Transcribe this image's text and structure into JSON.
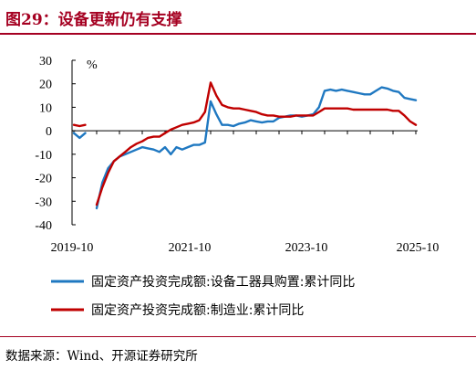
{
  "header": {
    "title": "图29：设备更新仍有支撑"
  },
  "footer": {
    "source": "数据来源：Wind、开源证券研究所"
  },
  "colors": {
    "title": "#a50021",
    "series_1": "#1f78c1",
    "series_2": "#c00000",
    "axis": "#000000"
  },
  "chart_data": {
    "type": "line",
    "unit_label": "%",
    "ylim": [
      -40,
      30
    ],
    "y_ticks": [
      30,
      20,
      10,
      0,
      -10,
      -20,
      -30,
      -40
    ],
    "x_ticks": [
      "2019-10",
      "2021-10",
      "2023-10",
      "2025-10"
    ],
    "grid": false,
    "legend_position": "bottom",
    "series": [
      {
        "name": "固定资产投资完成额:设备工器具购置:累计同比",
        "values": [
          -1,
          -3,
          -1,
          null,
          -33,
          -22,
          -16,
          -13,
          -11,
          -10,
          -9,
          -8,
          -7,
          -7.5,
          -8,
          -9,
          -7,
          -10,
          -7,
          -8,
          -7,
          -6,
          -6,
          -5,
          12.5,
          7,
          2.5,
          2.5,
          2,
          3,
          3.5,
          4.5,
          4,
          3.5,
          4,
          4,
          5.5,
          6,
          6.5,
          6.5,
          6,
          6.5,
          7,
          10,
          17,
          17.5,
          17,
          17.5,
          17,
          16.5,
          16,
          15.5,
          15.5,
          17,
          18.5,
          18,
          17,
          16.5,
          14,
          13.5,
          13
        ]
      },
      {
        "name": "固定资产投资完成额:制造业:累计同比",
        "values": [
          2.5,
          2,
          2.5,
          null,
          -31.5,
          -24,
          -18,
          -13,
          -11,
          -9,
          -7,
          -5.5,
          -4.5,
          -3,
          -2.5,
          -2.5,
          -1,
          0.5,
          1.5,
          2.5,
          3,
          3.5,
          4.5,
          8,
          20.5,
          15,
          11,
          10,
          9.5,
          9.5,
          9,
          8.5,
          8,
          7,
          6.5,
          6.5,
          6,
          6,
          6,
          6.5,
          6.5,
          6.5,
          6.5,
          8,
          9.5,
          9.5,
          9.5,
          9.5,
          9.5,
          9,
          9,
          9,
          9,
          9,
          9,
          9,
          8.5,
          8.5,
          6.5,
          4,
          2.5
        ]
      }
    ]
  }
}
